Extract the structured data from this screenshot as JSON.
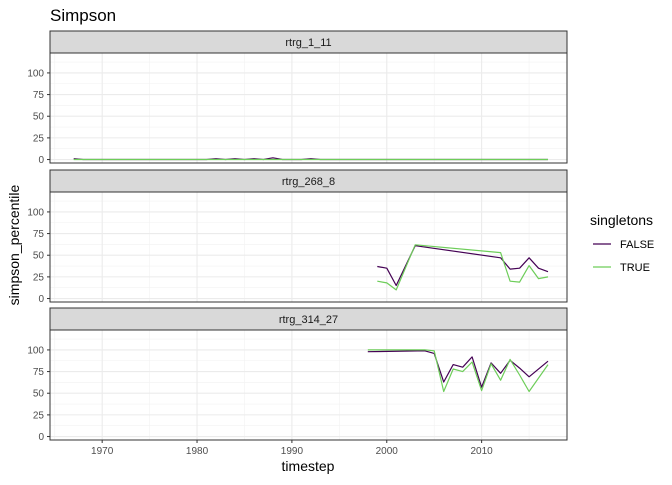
{
  "chart_data": {
    "type": "line",
    "title": "Simpson",
    "xlabel": "timestep",
    "ylabel": "simpson_percentile",
    "xlim": [
      1964.5,
      2019
    ],
    "ylim": [
      -4,
      123
    ],
    "x_ticks": [
      "1970",
      "1980",
      "1990",
      "2000",
      "2010"
    ],
    "x_tick_values": [
      1970,
      1980,
      1990,
      2000,
      2010
    ],
    "y_ticks": [
      "0",
      "25",
      "50",
      "75",
      "100"
    ],
    "y_tick_values": [
      0,
      25,
      50,
      75,
      100
    ],
    "grid": true,
    "legend": {
      "title": "singletons",
      "position": "right",
      "entries": [
        {
          "label": "FALSE",
          "color": "#440154"
        },
        {
          "label": "TRUE",
          "color": "#6DCD59"
        }
      ]
    },
    "panels": [
      {
        "strip": "rtrg_1_11",
        "series": [
          {
            "name": "FALSE",
            "color": "#440154",
            "x": [
              1967,
              1968,
              1970,
              1975,
              1981,
              1982,
              1983,
              1984,
              1985,
              1986,
              1987,
              1988,
              1989,
              1990,
              1991,
              1992,
              1993,
              1995,
              2000,
              2010,
              2017
            ],
            "y": [
              1,
              0,
              0,
              0,
              0,
              1,
              0,
              1,
              0,
              1,
              0,
              2,
              0,
              0,
              0,
              1,
              0,
              0,
              0,
              0,
              0
            ]
          },
          {
            "name": "TRUE",
            "color": "#6DCD59",
            "x": [
              1967,
              1968,
              1970,
              1980,
              1990,
              2000,
              2010,
              2017
            ],
            "y": [
              0,
              0,
              0,
              0,
              0,
              0,
              0,
              0
            ]
          }
        ]
      },
      {
        "strip": "rtrg_268_8",
        "series": [
          {
            "name": "FALSE",
            "color": "#440154",
            "x": [
              1999,
              2000,
              2001,
              2003,
              2012,
              2013,
              2014,
              2015,
              2016,
              2017
            ],
            "y": [
              37,
              35,
              15,
              61,
              47,
              34,
              35,
              47,
              35,
              31
            ]
          },
          {
            "name": "TRUE",
            "color": "#6DCD59",
            "x": [
              1999,
              2000,
              2001,
              2003,
              2012,
              2013,
              2014,
              2015,
              2016,
              2017
            ],
            "y": [
              20,
              18,
              10,
              62,
              53,
              20,
              19,
              38,
              23,
              25
            ]
          }
        ]
      },
      {
        "strip": "rtrg_314_27",
        "series": [
          {
            "name": "FALSE",
            "color": "#440154",
            "x": [
              1998,
              2004,
              2005,
              2006,
              2007,
              2008,
              2009,
              2010,
              2011,
              2012,
              2013,
              2014,
              2015,
              2017
            ],
            "y": [
              98,
              99,
              96,
              63,
              83,
              80,
              92,
              57,
              85,
              73,
              88,
              79,
              69,
              87
            ]
          },
          {
            "name": "TRUE",
            "color": "#6DCD59",
            "x": [
              1998,
              2004,
              2005,
              2006,
              2007,
              2008,
              2009,
              2010,
              2011,
              2012,
              2013,
              2014,
              2015,
              2017
            ],
            "y": [
              100,
              100,
              99,
              52,
              78,
              75,
              86,
              53,
              84,
              65,
              89,
              71,
              52,
              83
            ]
          }
        ]
      }
    ]
  }
}
